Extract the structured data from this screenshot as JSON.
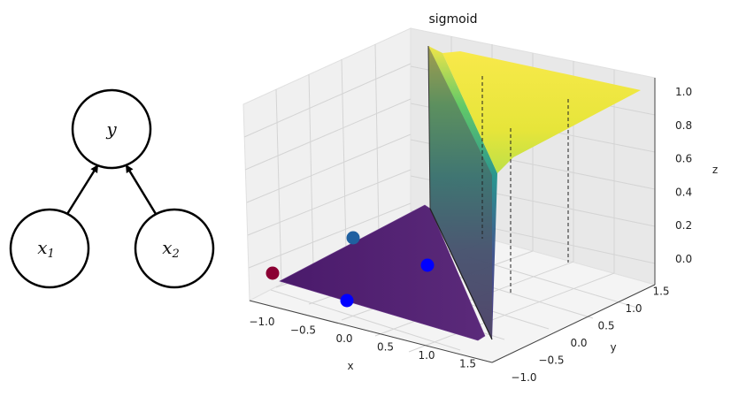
{
  "graph": {
    "nodes": [
      {
        "id": "y",
        "label": "y",
        "sub": ""
      },
      {
        "id": "x1",
        "label": "x",
        "sub": "1"
      },
      {
        "id": "x2",
        "label": "x",
        "sub": "2"
      }
    ],
    "edges": [
      {
        "from": "x1",
        "to": "y"
      },
      {
        "from": "x2",
        "to": "y"
      }
    ]
  },
  "chart_data": {
    "type": "surface3d",
    "title": "sigmoid",
    "function": "sigmoid",
    "xlabel": "x",
    "ylabel": "y",
    "zlabel": "z",
    "xlim": [
      -1.0,
      1.5
    ],
    "ylim": [
      -1.0,
      1.5
    ],
    "zlim": [
      0.0,
      1.0
    ],
    "x_ticks": [
      "−1.0",
      "−0.5",
      "0.0",
      "0.5",
      "1.0",
      "1.5"
    ],
    "y_ticks": [
      "−1.0",
      "−0.5",
      "0.0",
      "0.5",
      "1.0",
      "1.5"
    ],
    "z_ticks": [
      "0.0",
      "0.2",
      "0.4",
      "0.6",
      "0.8",
      "1.0"
    ],
    "grid": true,
    "colormap": "viridis",
    "points": [
      {
        "x": 0,
        "y": 0,
        "z": 0,
        "color": "#8b0033"
      },
      {
        "x": 0,
        "y": 1,
        "z": 0,
        "color": "#2060a0"
      },
      {
        "x": 1,
        "y": 0,
        "z": 0,
        "color": "#0000ff"
      },
      {
        "x": 1,
        "y": 1,
        "z": 0,
        "color": "#0000ff"
      }
    ]
  }
}
